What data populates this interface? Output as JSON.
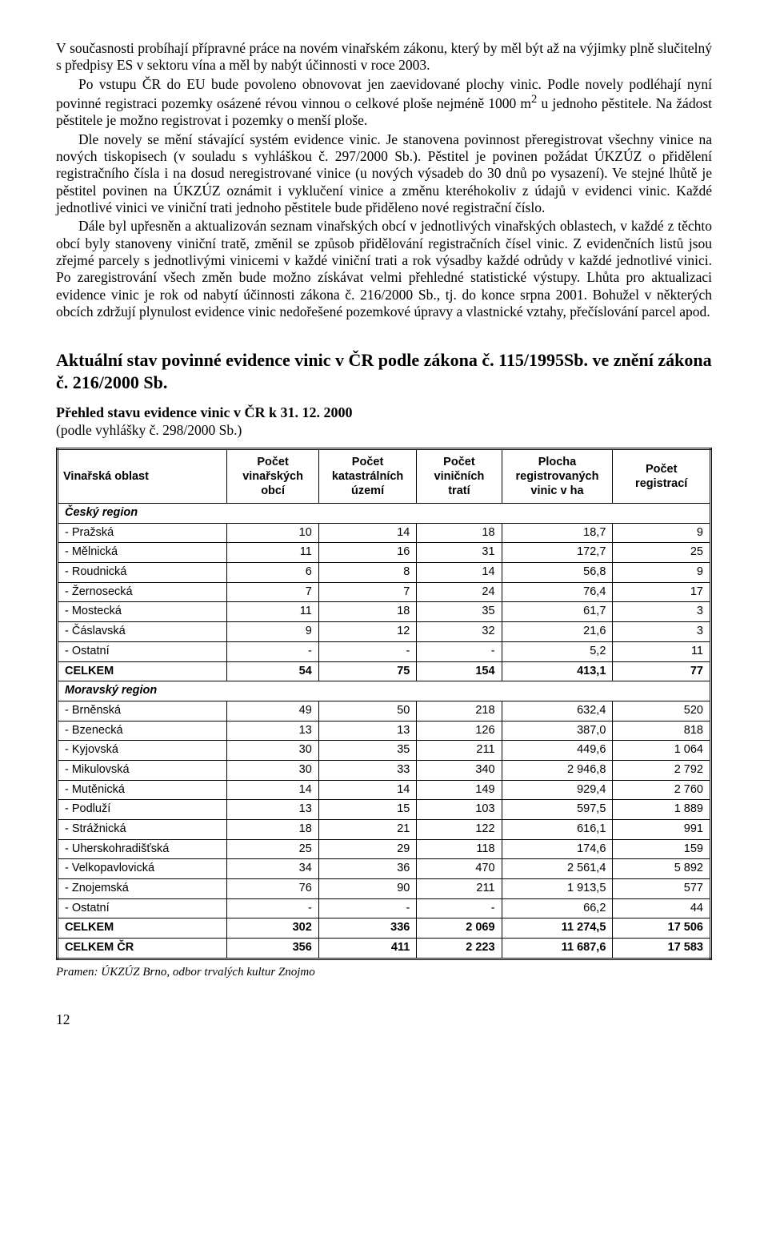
{
  "paragraphs": {
    "p1": "V současnosti probíhají přípravné práce na novém vinařském zákonu, který by měl být až na výjimky plně slučitelný s předpisy ES v sektoru vína a měl by nabýt účinnosti v roce 2003.",
    "p2a": "Po vstupu ČR do EU bude povoleno obnovovat jen zaevidované plochy vinic. Podle novely podléhají nyní povinné registraci pozemky osázené révou vinnou o celkové ploše nejméně 1000 m",
    "p2b": " u jednoho pěstitele. Na žádost pěstitele je možno registrovat i pozemky o menší ploše.",
    "p3": "Dle novely se mění stávající systém evidence vinic. Je stanovena povinnost přeregistrovat všechny vinice na nových tiskopisech (v souladu s vyhláškou č. 297/2000 Sb.). Pěstitel je povinen požádat ÚKZÚZ o přidělení registračního čísla i na dosud neregistrované vinice (u nových výsadeb do 30 dnů po vysazení). Ve stejné lhůtě je pěstitel povinen na ÚKZÚZ oznámit i vyklučení vinice a změnu kteréhokoliv z údajů v evidenci vinic. Každé jednotlivé vinici ve viniční trati jednoho pěstitele bude přiděleno nové registrační číslo.",
    "p4": "Dále byl upřesněn a aktualizován seznam vinařských obcí v jednotlivých vinařských oblastech, v každé z těchto obcí byly stanoveny viniční tratě, změnil se způsob přidělování registračních čísel vinic. Z evidenčních listů jsou zřejmé parcely s jednotlivými vinicemi v každé viniční trati a rok výsadby každé odrůdy v každé jednotlivé vinici. Po zaregistrování všech změn bude možno získávat velmi přehledné statistické výstupy. Lhůta pro aktualizaci evidence vinic je rok od nabytí účinnosti zákona č. 216/2000 Sb., tj. do konce srpna 2001. Bohužel v některých obcích zdržují plynulost evidence vinic nedořešené pozemkové úpravy a vlastnické vztahy, přečíslování parcel apod."
  },
  "section_title": "Aktuální stav povinné evidence vinic v ČR podle zákona č. 115/1995Sb. ve znění zákona č. 216/2000 Sb.",
  "table_heading": "Přehled stavu evidence vinic v ČR k 31. 12. 2000",
  "table_subnote": "(podle vyhlášky č. 298/2000 Sb.)",
  "table": {
    "columns": [
      "Vinařská oblast",
      "Počet vinařských obcí",
      "Počet katastrálních území",
      "Počet viničních tratí",
      "Plocha registrovaných vinic v ha",
      "Počet registrací"
    ],
    "col_widths_pct": [
      26,
      14,
      15,
      13,
      17,
      15
    ],
    "header_lines": {
      "c0": [
        "Vinařská oblast"
      ],
      "c1": [
        "Počet",
        "vinařských",
        "obcí"
      ],
      "c2": [
        "Počet",
        "katastrálních",
        "území"
      ],
      "c3": [
        "Počet",
        "viničních",
        "tratí"
      ],
      "c4": [
        "Plocha",
        "registrovaných",
        "vinic v ha"
      ],
      "c5": [
        "Počet",
        "registrací"
      ]
    },
    "region1": "Český region",
    "rows1": [
      {
        "label": "- Pražská",
        "v": [
          "10",
          "14",
          "18",
          "18,7",
          "9"
        ]
      },
      {
        "label": "- Mělnická",
        "v": [
          "11",
          "16",
          "31",
          "172,7",
          "25"
        ]
      },
      {
        "label": "- Roudnická",
        "v": [
          "6",
          "8",
          "14",
          "56,8",
          "9"
        ]
      },
      {
        "label": "- Žernosecká",
        "v": [
          "7",
          "7",
          "24",
          "76,4",
          "17"
        ]
      },
      {
        "label": "- Mostecká",
        "v": [
          "11",
          "18",
          "35",
          "61,7",
          "3"
        ]
      },
      {
        "label": "- Čáslavská",
        "v": [
          "9",
          "12",
          "32",
          "21,6",
          "3"
        ]
      },
      {
        "label": "- Ostatní",
        "v": [
          "-",
          "-",
          "-",
          "5,2",
          "11"
        ]
      }
    ],
    "total1": {
      "label": "CELKEM",
      "v": [
        "54",
        "75",
        "154",
        "413,1",
        "77"
      ]
    },
    "region2": "Moravský region",
    "rows2": [
      {
        "label": "- Brněnská",
        "v": [
          "49",
          "50",
          "218",
          "632,4",
          "520"
        ]
      },
      {
        "label": "- Bzenecká",
        "v": [
          "13",
          "13",
          "126",
          "387,0",
          "818"
        ]
      },
      {
        "label": "- Kyjovská",
        "v": [
          "30",
          "35",
          "211",
          "449,6",
          "1 064"
        ]
      },
      {
        "label": "- Mikulovská",
        "v": [
          "30",
          "33",
          "340",
          "2 946,8",
          "2 792"
        ]
      },
      {
        "label": "- Mutěnická",
        "v": [
          "14",
          "14",
          "149",
          "929,4",
          "2 760"
        ]
      },
      {
        "label": "- Podluží",
        "v": [
          "13",
          "15",
          "103",
          "597,5",
          "1 889"
        ]
      },
      {
        "label": "- Strážnická",
        "v": [
          "18",
          "21",
          "122",
          "616,1",
          "991"
        ]
      },
      {
        "label": "- Uherskohradišťská",
        "v": [
          "25",
          "29",
          "118",
          "174,6",
          "159"
        ]
      },
      {
        "label": "- Velkopavlovická",
        "v": [
          "34",
          "36",
          "470",
          "2 561,4",
          "5 892"
        ]
      },
      {
        "label": "- Znojemská",
        "v": [
          "76",
          "90",
          "211",
          "1 913,5",
          "577"
        ]
      },
      {
        "label": "- Ostatní",
        "v": [
          "-",
          "-",
          "-",
          "66,2",
          "44"
        ]
      }
    ],
    "total2": {
      "label": "CELKEM",
      "v": [
        "302",
        "336",
        "2 069",
        "11 274,5",
        "17 506"
      ]
    },
    "grand": {
      "label": "CELKEM ČR",
      "v": [
        "356",
        "411",
        "2 223",
        "11 687,6",
        "17 583"
      ]
    }
  },
  "source": "Pramen: ÚKZÚZ Brno, odbor trvalých kultur Znojmo",
  "page_number": "12"
}
